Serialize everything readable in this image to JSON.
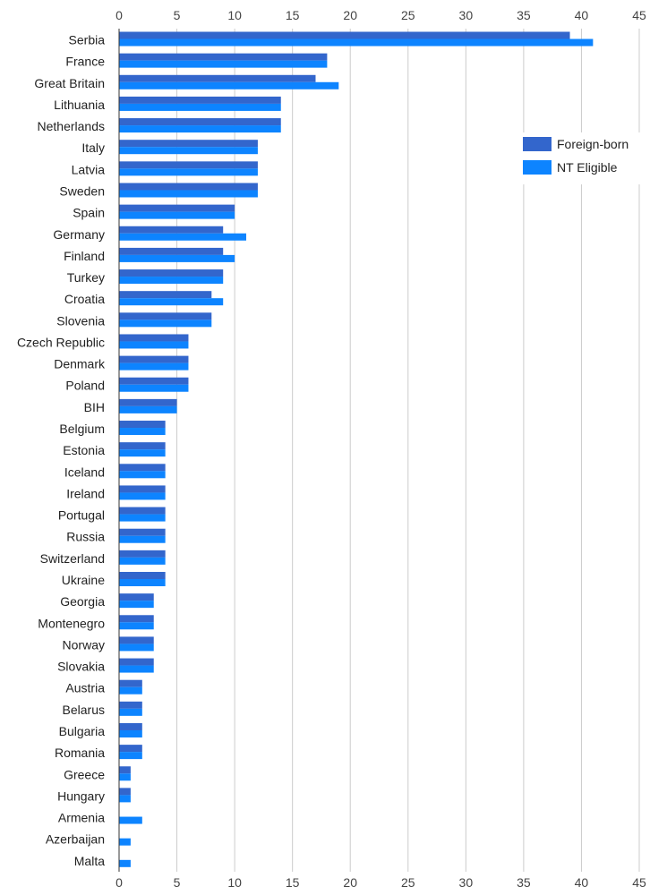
{
  "chart_data": {
    "type": "bar",
    "orientation": "horizontal",
    "title": "",
    "xlabel": "",
    "ylabel": "",
    "xlim": [
      0,
      45
    ],
    "ticks": [
      0,
      5,
      10,
      15,
      20,
      25,
      30,
      35,
      40,
      45
    ],
    "grid": true,
    "legend_position": "right",
    "categories": [
      "Serbia",
      "France",
      "Great Britain",
      "Lithuania",
      "Netherlands",
      "Italy",
      "Latvia",
      "Sweden",
      "Spain",
      "Germany",
      "Finland",
      "Turkey",
      "Croatia",
      "Slovenia",
      "Czech Republic",
      "Denmark",
      "Poland",
      "BIH",
      "Belgium",
      "Estonia",
      "Iceland",
      "Ireland",
      "Portugal",
      "Russia",
      "Switzerland",
      "Ukraine",
      "Georgia",
      "Montenegro",
      "Norway",
      "Slovakia",
      "Austria",
      "Belarus",
      "Bulgaria",
      "Romania",
      "Greece",
      "Hungary",
      "Armenia",
      "Azerbaijan",
      "Malta"
    ],
    "series": [
      {
        "name": "Foreign-born",
        "color": "#3366cc",
        "values": [
          39,
          18,
          17,
          14,
          14,
          12,
          12,
          12,
          10,
          9,
          9,
          9,
          8,
          8,
          6,
          6,
          6,
          5,
          4,
          4,
          4,
          4,
          4,
          4,
          4,
          4,
          3,
          3,
          3,
          3,
          2,
          2,
          2,
          2,
          1,
          1,
          0,
          0,
          0
        ]
      },
      {
        "name": "NT Eligible",
        "color": "#0d84ff",
        "values": [
          41,
          18,
          19,
          14,
          14,
          12,
          12,
          12,
          10,
          11,
          10,
          9,
          9,
          8,
          6,
          6,
          6,
          5,
          4,
          4,
          4,
          4,
          4,
          4,
          4,
          4,
          3,
          3,
          3,
          3,
          2,
          2,
          2,
          2,
          1,
          1,
          2,
          1,
          1
        ]
      }
    ]
  }
}
